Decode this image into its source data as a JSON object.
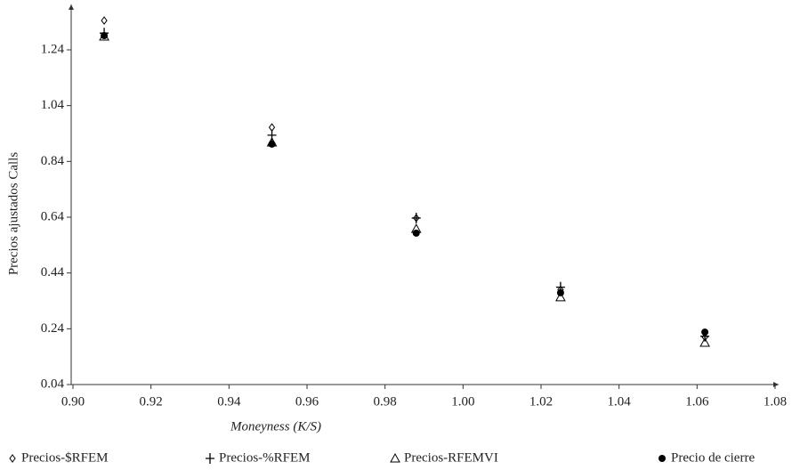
{
  "chart_data": {
    "type": "scatter",
    "x_label": "Moneyness (K/S)",
    "y_label": "Precios ajustados Calls",
    "xlim": [
      0.9,
      1.08
    ],
    "xticks": [
      {
        "value": 0.9,
        "label": "0.90"
      },
      0.92,
      0.94,
      0.96,
      0.98,
      {
        "value": 1.0,
        "label": "1.00"
      },
      1.02,
      1.04,
      1.06,
      1.08
    ],
    "ylim": [
      0.04,
      1.39
    ],
    "yticks": [
      0.04,
      0.24,
      0.44,
      0.64,
      0.84,
      1.04,
      1.24
    ],
    "x": [
      0.908,
      0.951,
      0.988,
      1.025,
      1.062
    ],
    "series": [
      {
        "name": "Precios-$RFEM",
        "marker": "diamond",
        "color": "#000000",
        "values": [
          1.345,
          0.962,
          0.637,
          0.38,
          0.21
        ]
      },
      {
        "name": "Precios-%RFEM",
        "marker": "plus",
        "color": "#000000",
        "values": [
          1.3,
          0.934,
          0.637,
          0.389,
          0.213
        ]
      },
      {
        "name": "Precios-RFEMVI",
        "marker": "triangle",
        "color": "#000000",
        "values": [
          1.288,
          0.908,
          0.598,
          0.353,
          0.19
        ]
      },
      {
        "name": "Precio de cierre",
        "marker": "circle",
        "color": "#000000",
        "values": [
          1.291,
          0.902,
          0.583,
          0.369,
          0.228
        ]
      }
    ]
  }
}
